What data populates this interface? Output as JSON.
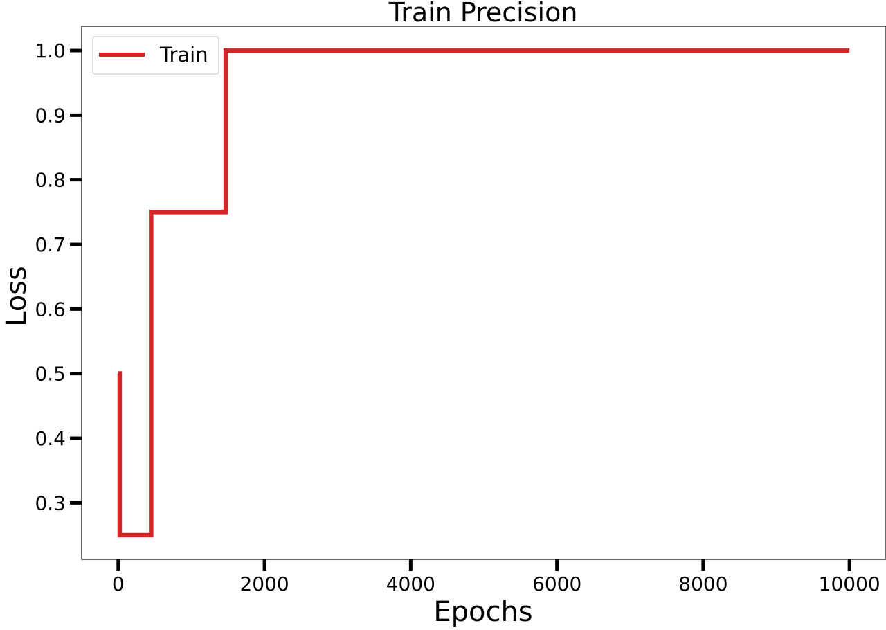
{
  "chart_data": {
    "type": "line",
    "title": "Train Precision",
    "xlabel": "Epochs",
    "ylabel": "Loss",
    "xlim": [
      -500,
      10500
    ],
    "ylim": [
      0.2125,
      1.0375
    ],
    "xticks": [
      0,
      2000,
      4000,
      6000,
      8000,
      10000
    ],
    "yticks": [
      0.3,
      0.4,
      0.5,
      0.6,
      0.7,
      0.8,
      0.9,
      1.0
    ],
    "xtick_labels": [
      "0",
      "2000",
      "4000",
      "6000",
      "8000",
      "10000"
    ],
    "ytick_labels": [
      "0.3",
      "0.4",
      "0.5",
      "0.6",
      "0.7",
      "0.8",
      "0.9",
      "1.0"
    ],
    "grid": false,
    "legend_position": "top-left",
    "series": [
      {
        "name": "Train",
        "color": "#d62728",
        "step": true,
        "x": [
          0,
          20,
          450,
          1470,
          10000
        ],
        "y": [
          0.5,
          0.25,
          0.75,
          1.0,
          1.0
        ]
      }
    ]
  }
}
